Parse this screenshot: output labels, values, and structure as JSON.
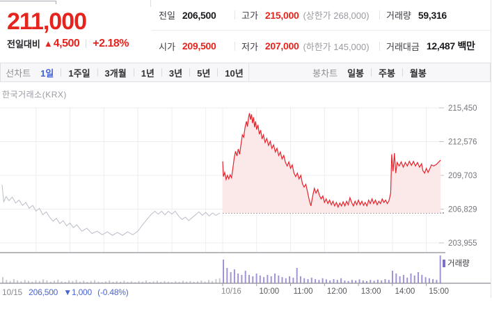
{
  "header": {
    "price": "211,000",
    "change_label": "전일대비",
    "change_arrow": "▲",
    "change_value": "4,500",
    "change_percent": "+2.18%",
    "table": {
      "rows": [
        {
          "cells": [
            {
              "label": "전일",
              "value": "206,500",
              "extra": ""
            },
            {
              "label": "고가",
              "value": "215,000",
              "extra": "(상한가 268,000)"
            },
            {
              "label": "거래량",
              "value": "59,316",
              "extra": ""
            }
          ]
        },
        {
          "cells": [
            {
              "label": "시가",
              "value": "209,500",
              "extra": ""
            },
            {
              "label": "저가",
              "value": "207,000",
              "extra": "(하한가 145,000)"
            },
            {
              "label": "거래대금",
              "value": "12,487 백만",
              "extra": ""
            }
          ]
        }
      ]
    }
  },
  "toolbar": {
    "left_label": "선차트",
    "left_tabs": [
      {
        "label": "1일",
        "active": true
      },
      {
        "label": "1주일",
        "active": false
      },
      {
        "label": "3개월",
        "active": false
      },
      {
        "label": "1년",
        "active": false
      },
      {
        "label": "3년",
        "active": false
      },
      {
        "label": "5년",
        "active": false
      },
      {
        "label": "10년",
        "active": false
      }
    ],
    "right_label": "봉차트",
    "right_tabs": [
      {
        "label": "일봉"
      },
      {
        "label": "주봉"
      },
      {
        "label": "월봉"
      }
    ]
  },
  "chart": {
    "exchange_label": "한국거래소(KRX)",
    "volume_legend": "거래량"
  },
  "colors": {
    "up_red": "#e4241d",
    "active_blue": "#3e5fd7",
    "footer_blue": "#4a66d0",
    "volume_purple": "#a293d6",
    "prev_day_gray": "#b9bdc9"
  },
  "chart_data": {
    "type": "line",
    "title": "한국거래소(KRX)",
    "ylabel": "",
    "xlabel": "",
    "grid": true,
    "legend_position": "volume pane top-right",
    "y_axis": {
      "tick_labels": [
        "215,450",
        "212,576",
        "209,703",
        "206,829",
        "203,955"
      ],
      "tick_values": [
        215450,
        212576,
        209703,
        206829,
        203955
      ],
      "range_top": 215450,
      "range_bottom": 203955
    },
    "x_axis": {
      "day1_label": "10/15",
      "day2_label": "10/16",
      "hour_labels": [
        "10:00",
        "11:00",
        "12:00",
        "13:00",
        "14:00",
        "15:00"
      ],
      "hours_per_day": 6.5
    },
    "prev_close": 206500,
    "footer": {
      "date": "10/15",
      "price": "206,500",
      "change": "▼1,000",
      "percent": "(-0.48%)"
    },
    "series": [
      {
        "name": "10/15",
        "day": 1,
        "color": "#b9bdc9",
        "fill": false,
        "points": [
          [
            0,
            208900
          ],
          [
            0.05,
            207450
          ],
          [
            0.12,
            207900
          ],
          [
            0.2,
            207550
          ],
          [
            0.3,
            207850
          ],
          [
            0.4,
            207350
          ],
          [
            0.5,
            207600
          ],
          [
            0.6,
            207150
          ],
          [
            0.7,
            207400
          ],
          [
            0.8,
            206900
          ],
          [
            0.9,
            207150
          ],
          [
            1.0,
            206650
          ],
          [
            1.1,
            206900
          ],
          [
            1.2,
            206350
          ],
          [
            1.3,
            206600
          ],
          [
            1.4,
            206150
          ],
          [
            1.5,
            205800
          ],
          [
            1.6,
            206050
          ],
          [
            1.7,
            205600
          ],
          [
            1.8,
            205850
          ],
          [
            1.9,
            205400
          ],
          [
            2.0,
            205650
          ],
          [
            2.1,
            205250
          ],
          [
            2.2,
            205500
          ],
          [
            2.35,
            204950
          ],
          [
            2.5,
            205200
          ],
          [
            2.65,
            204750
          ],
          [
            2.8,
            204950
          ],
          [
            2.95,
            204650
          ],
          [
            3.1,
            204900
          ],
          [
            3.25,
            204600
          ],
          [
            3.4,
            204850
          ],
          [
            3.55,
            204600
          ],
          [
            3.7,
            204900
          ],
          [
            3.85,
            204650
          ],
          [
            4.0,
            204950
          ],
          [
            4.1,
            205350
          ],
          [
            4.2,
            205700
          ],
          [
            4.3,
            206050
          ],
          [
            4.4,
            206400
          ],
          [
            4.5,
            206650
          ],
          [
            4.6,
            206400
          ],
          [
            4.7,
            206650
          ],
          [
            4.8,
            206350
          ],
          [
            4.9,
            206650
          ],
          [
            5.0,
            206400
          ],
          [
            5.1,
            206650
          ],
          [
            5.2,
            206250
          ],
          [
            5.3,
            205950
          ],
          [
            5.4,
            206150
          ],
          [
            5.5,
            205850
          ],
          [
            5.6,
            206100
          ],
          [
            5.7,
            206350
          ],
          [
            5.8,
            206600
          ],
          [
            5.9,
            206300
          ],
          [
            6.0,
            206550
          ],
          [
            6.1,
            206250
          ],
          [
            6.2,
            206500
          ],
          [
            6.3,
            206300
          ],
          [
            6.42,
            206500
          ]
        ]
      },
      {
        "name": "10/16",
        "day": 2,
        "color": "#e7222b",
        "fill": true,
        "fill_color": "#fbe9ea",
        "open": 209500,
        "high": 215000,
        "low": 207000,
        "close": 211000,
        "points": [
          [
            0,
            210900
          ],
          [
            0.02,
            209600
          ],
          [
            0.06,
            209950
          ],
          [
            0.1,
            209350
          ],
          [
            0.14,
            209700
          ],
          [
            0.18,
            209400
          ],
          [
            0.22,
            209750
          ],
          [
            0.26,
            209500
          ],
          [
            0.3,
            210300
          ],
          [
            0.34,
            211200
          ],
          [
            0.38,
            211750
          ],
          [
            0.42,
            211350
          ],
          [
            0.46,
            211950
          ],
          [
            0.5,
            211500
          ],
          [
            0.54,
            212350
          ],
          [
            0.58,
            213150
          ],
          [
            0.62,
            212950
          ],
          [
            0.66,
            213800
          ],
          [
            0.7,
            214300
          ],
          [
            0.73,
            213850
          ],
          [
            0.76,
            214600
          ],
          [
            0.79,
            215000
          ],
          [
            0.82,
            214450
          ],
          [
            0.85,
            214900
          ],
          [
            0.88,
            214150
          ],
          [
            0.91,
            214650
          ],
          [
            0.94,
            213800
          ],
          [
            0.97,
            214300
          ],
          [
            1.0,
            213600
          ],
          [
            1.04,
            214000
          ],
          [
            1.08,
            213200
          ],
          [
            1.12,
            213550
          ],
          [
            1.16,
            212800
          ],
          [
            1.2,
            213150
          ],
          [
            1.25,
            212500
          ],
          [
            1.3,
            212850
          ],
          [
            1.35,
            212250
          ],
          [
            1.4,
            212600
          ],
          [
            1.45,
            212000
          ],
          [
            1.5,
            212300
          ],
          [
            1.55,
            211700
          ],
          [
            1.6,
            212000
          ],
          [
            1.65,
            211400
          ],
          [
            1.7,
            211700
          ],
          [
            1.75,
            211100
          ],
          [
            1.8,
            211400
          ],
          [
            1.85,
            210800
          ],
          [
            1.9,
            210500
          ],
          [
            1.95,
            210850
          ],
          [
            2.0,
            210300
          ],
          [
            2.05,
            210600
          ],
          [
            2.1,
            209900
          ],
          [
            2.15,
            209600
          ],
          [
            2.2,
            209900
          ],
          [
            2.25,
            209400
          ],
          [
            2.3,
            209700
          ],
          [
            2.35,
            209000
          ],
          [
            2.4,
            208700
          ],
          [
            2.45,
            208950
          ],
          [
            2.5,
            208300
          ],
          [
            2.55,
            207600
          ],
          [
            2.6,
            207100
          ],
          [
            2.65,
            207900
          ],
          [
            2.7,
            208600
          ],
          [
            2.75,
            208200
          ],
          [
            2.8,
            208500
          ],
          [
            2.85,
            208000
          ],
          [
            2.9,
            207700
          ],
          [
            2.95,
            207950
          ],
          [
            3.0,
            207400
          ],
          [
            3.05,
            207700
          ],
          [
            3.1,
            207300
          ],
          [
            3.15,
            207600
          ],
          [
            3.2,
            207200
          ],
          [
            3.25,
            207500
          ],
          [
            3.3,
            207100
          ],
          [
            3.35,
            207400
          ],
          [
            3.4,
            207000
          ],
          [
            3.45,
            207350
          ],
          [
            3.5,
            207100
          ],
          [
            3.55,
            207450
          ],
          [
            3.6,
            207100
          ],
          [
            3.65,
            207500
          ],
          [
            3.7,
            207200
          ],
          [
            3.75,
            207800
          ],
          [
            3.8,
            207400
          ],
          [
            3.85,
            207100
          ],
          [
            3.9,
            207500
          ],
          [
            3.95,
            207200
          ],
          [
            4.0,
            207600
          ],
          [
            4.05,
            207200
          ],
          [
            4.1,
            207500
          ],
          [
            4.15,
            207150
          ],
          [
            4.2,
            207400
          ],
          [
            4.25,
            207100
          ],
          [
            4.3,
            207600
          ],
          [
            4.35,
            207300
          ],
          [
            4.4,
            207700
          ],
          [
            4.45,
            207300
          ],
          [
            4.5,
            207600
          ],
          [
            4.55,
            207200
          ],
          [
            4.6,
            207500
          ],
          [
            4.65,
            207300
          ],
          [
            4.7,
            207700
          ],
          [
            4.75,
            207400
          ],
          [
            4.8,
            207600
          ],
          [
            4.85,
            207300
          ],
          [
            4.9,
            207550
          ],
          [
            4.95,
            208200
          ],
          [
            4.98,
            211500
          ],
          [
            5.02,
            210050
          ],
          [
            5.06,
            211600
          ],
          [
            5.1,
            209900
          ],
          [
            5.14,
            210800
          ],
          [
            5.2,
            210500
          ],
          [
            5.26,
            210850
          ],
          [
            5.32,
            210400
          ],
          [
            5.38,
            210800
          ],
          [
            5.44,
            210500
          ],
          [
            5.5,
            210900
          ],
          [
            5.56,
            210550
          ],
          [
            5.62,
            210900
          ],
          [
            5.68,
            210500
          ],
          [
            5.74,
            210800
          ],
          [
            5.8,
            210400
          ],
          [
            5.86,
            210700
          ],
          [
            5.9,
            210100
          ],
          [
            5.95,
            209900
          ],
          [
            6.0,
            210300
          ],
          [
            6.05,
            209950
          ],
          [
            6.1,
            210250
          ],
          [
            6.15,
            210600
          ],
          [
            6.22,
            210500
          ],
          [
            6.3,
            210650
          ],
          [
            6.42,
            211000
          ]
        ]
      }
    ],
    "volume": {
      "legend": "거래량",
      "series": [
        {
          "name": "10/15",
          "day": 1,
          "color": "#c7cad3",
          "relative_values": [
            0.22,
            0.12,
            0.08,
            0.15,
            0.1,
            0.07,
            0.12,
            0.09,
            0.06,
            0.11,
            0.08,
            0.14,
            0.1,
            0.06,
            0.09,
            0.13,
            0.07,
            0.05,
            0.1,
            0.08,
            0.12,
            0.06,
            0.09,
            0.05,
            0.08,
            0.11,
            0.06,
            0.04,
            0.07,
            0.1,
            0.05,
            0.08,
            0.06,
            0.09,
            0.05,
            0.07,
            0.04,
            0.08,
            0.06,
            0.1,
            0.05,
            0.07,
            0.09,
            0.05,
            0.08,
            0.06,
            0.04,
            0.07,
            0.05,
            0.09,
            0.06,
            0.08,
            0.05,
            0.07,
            0.1,
            0.06,
            0.12,
            0.08,
            0.15,
            0.18
          ]
        },
        {
          "name": "10/16",
          "day": 2,
          "color": "#a293d6",
          "relative_values": [
            0.85,
            0.55,
            0.4,
            0.5,
            0.35,
            0.3,
            0.45,
            0.3,
            0.25,
            0.35,
            0.28,
            0.22,
            0.3,
            0.25,
            0.35,
            0.28,
            0.22,
            0.18,
            0.25,
            0.2,
            0.55,
            0.25,
            0.18,
            0.15,
            0.2,
            0.15,
            0.12,
            0.18,
            0.14,
            0.1,
            0.15,
            0.12,
            0.18,
            0.1,
            0.08,
            0.12,
            0.1,
            0.14,
            0.1,
            0.08,
            0.12,
            0.09,
            0.13,
            0.1,
            0.15,
            0.12,
            0.45,
            0.35,
            0.25,
            0.3,
            0.2,
            0.35,
            0.28,
            0.4,
            0.3,
            0.22,
            0.18,
            0.15,
            0.12,
            1.0
          ]
        }
      ]
    }
  }
}
